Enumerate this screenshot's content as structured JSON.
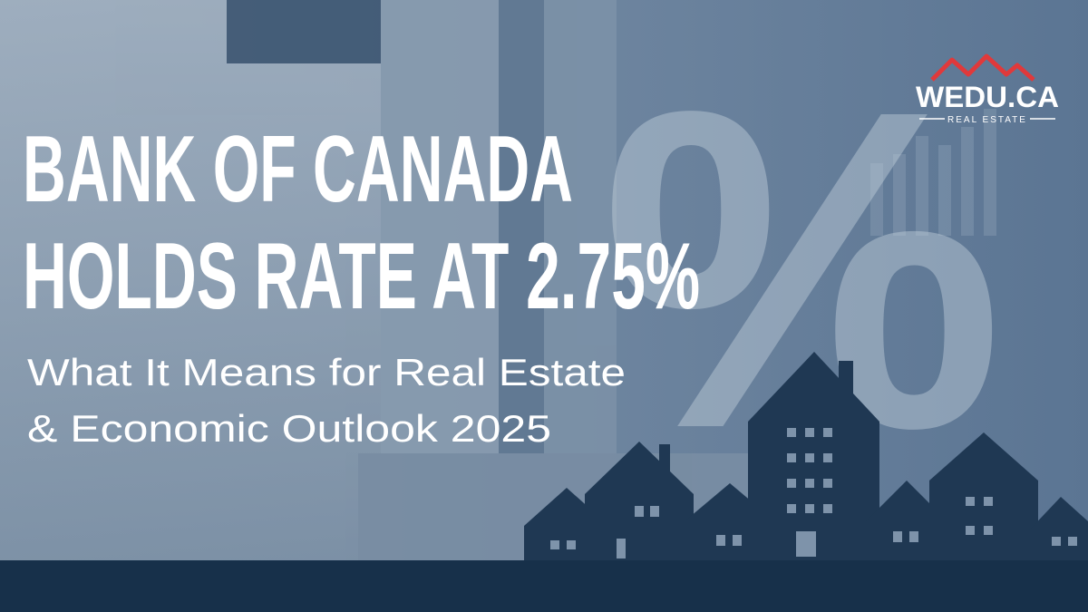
{
  "headline": {
    "lines": [
      "BANK OF CANADA",
      "HOLDS RATE AT 2.75%"
    ]
  },
  "subheadline": {
    "lines": [
      "What It Means for Real Estate",
      "& Economic Outlook 2025"
    ]
  },
  "logo": {
    "name": "WEDU.CA",
    "tagline": "REAL ESTATE"
  },
  "background_symbol": "%"
}
